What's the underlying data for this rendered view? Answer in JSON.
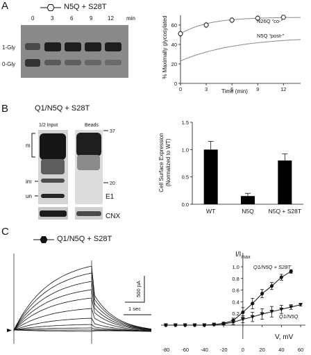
{
  "panelA": {
    "letter": "A",
    "legend": "N5Q + S28T",
    "time_header": [
      "0",
      "3",
      "6",
      "9",
      "12"
    ],
    "time_unit": "min",
    "gel_labels": [
      "1-Gly",
      "0-Gly"
    ],
    "curve_label_co": "N26Q “co-”",
    "curve_label_post": "N5Q “post-”",
    "chart_data": {
      "type": "line",
      "xlabel": "Time (min)",
      "ylabel": "% Maximally glycosylated",
      "xlim": [
        0,
        14
      ],
      "ylim": [
        0,
        70
      ],
      "xticks": [
        0,
        3,
        6,
        9,
        12
      ],
      "yticks": [
        0,
        20,
        40,
        60
      ],
      "series": [
        {
          "name": "N5Q + S28T",
          "x": [
            0,
            3,
            6,
            9,
            12
          ],
          "y": [
            51,
            60,
            65,
            67,
            68
          ],
          "err": [
            4,
            3,
            3,
            3,
            2
          ]
        }
      ]
    }
  },
  "panelB": {
    "letter": "B",
    "legend": "Q1/N5Q + S28T",
    "lane_labels": [
      "1/2 Input",
      "Beads"
    ],
    "mw_labels": [
      "37",
      "20"
    ],
    "band_labels": [
      "m",
      "im",
      "un"
    ],
    "blot_labels": [
      "E1",
      "CNX"
    ],
    "chart_data": {
      "type": "bar",
      "ylabel": "Cell Surface Expression (Normalized to WT)",
      "ylabel_line1": "Cell Surface Expression",
      "ylabel_line2": "(Normalized to WT)",
      "categories": [
        "WT",
        "N5Q",
        "N5Q + S28T"
      ],
      "values": [
        1.0,
        0.15,
        0.8
      ],
      "errors": [
        0.15,
        0.05,
        0.12
      ],
      "ylim": [
        0,
        1.5
      ],
      "yticks": [
        "0.0",
        "0.5",
        "1.0",
        "1.5"
      ]
    }
  },
  "panelC": {
    "letter": "C",
    "legend": "Q1/N5Q + S28T",
    "scale_current": "500 pA",
    "scale_time": "1 sec",
    "chart_data": {
      "type": "line",
      "ylabel_main": "I/I",
      "ylabel_sub": "max",
      "xlabel": "V, mV",
      "xlim": [
        -85,
        65
      ],
      "ylim": [
        0,
        1.05
      ],
      "xticks": [
        "-80",
        "-60",
        "-40",
        "-20",
        "0",
        "20",
        "40",
        "60"
      ],
      "yticks": [
        "0.2",
        "0.4",
        "0.6",
        "0.8",
        "1.0"
      ],
      "series": [
        {
          "name": "Q1/N5Q + S28T",
          "x": [
            -80,
            -70,
            -60,
            -50,
            -40,
            -30,
            -20,
            -10,
            0,
            10,
            20,
            30,
            40,
            50
          ],
          "y": [
            0,
            0,
            0,
            0,
            0,
            0.01,
            0.03,
            0.08,
            0.22,
            0.37,
            0.54,
            0.67,
            0.82,
            0.92
          ],
          "err": [
            0,
            0,
            0,
            0,
            0,
            0.01,
            0.02,
            0.04,
            0.08,
            0.09,
            0.07,
            0.06,
            0.05,
            0.03
          ]
        },
        {
          "name": "Q1/N5Q",
          "x": [
            -80,
            -70,
            -60,
            -50,
            -40,
            -30,
            -20,
            -10,
            0,
            10,
            20,
            30,
            40,
            50,
            60
          ],
          "y": [
            0,
            0,
            0,
            0,
            0,
            0.01,
            0.02,
            0.05,
            0.1,
            0.14,
            0.19,
            0.23,
            0.27,
            0.31,
            0.35
          ],
          "err": [
            0,
            0,
            0,
            0,
            0,
            0.01,
            0.02,
            0.04,
            0.06,
            0.08,
            0.09,
            0.09,
            0.07,
            0.04,
            0.02
          ]
        }
      ]
    }
  }
}
